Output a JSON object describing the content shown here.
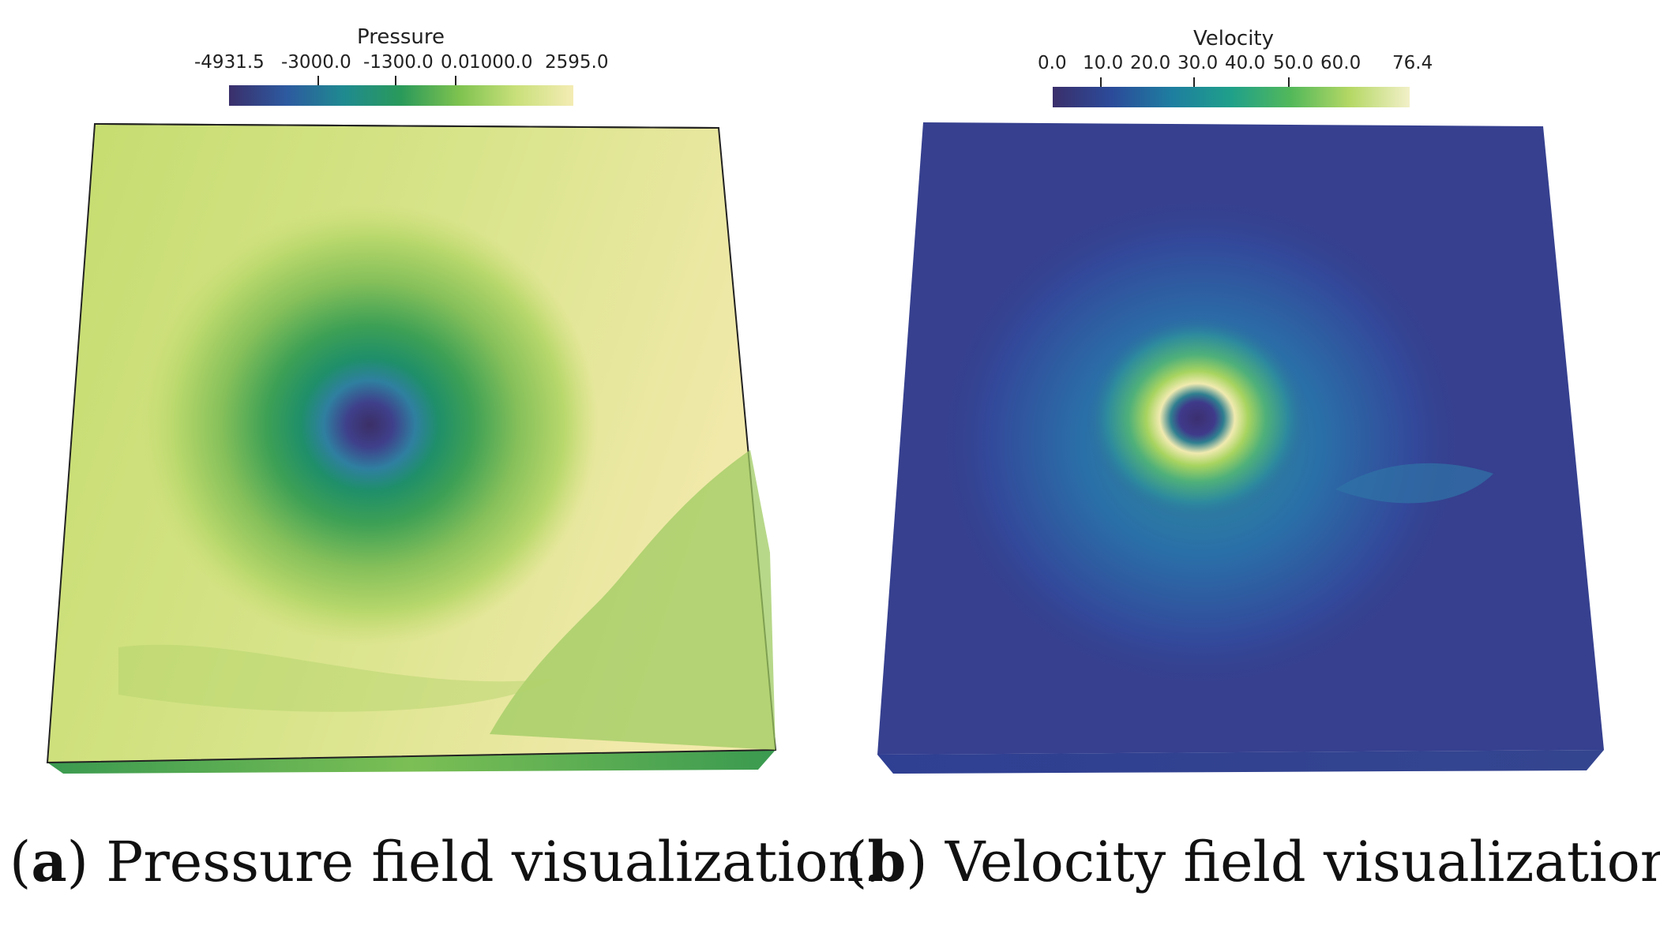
{
  "panel_a": {
    "colorbar": {
      "title": "Pressure",
      "ticks": [
        "-4931.5",
        "-3000.0",
        "-1300.0",
        "0.0",
        "1000.0",
        "2595.0"
      ],
      "gradient": [
        "#3a2f6b",
        "#2d5aa0",
        "#1f8a90",
        "#2a9a5a",
        "#7dc24f",
        "#c9e07a",
        "#f4ecb4"
      ]
    },
    "caption": {
      "letter": "a",
      "text": " Pressure field visualization."
    }
  },
  "panel_b": {
    "colorbar": {
      "title": "Velocity",
      "ticks": [
        "0.0",
        "10.0",
        "20.0",
        "30.0",
        "40.0",
        "50.0",
        "60.0",
        "76.4"
      ],
      "gradient": [
        "#3a2f6b",
        "#2b4b9a",
        "#1e7ea0",
        "#1fa08a",
        "#52b85a",
        "#b5d865",
        "#f2f0c8"
      ]
    },
    "caption": {
      "letter": "b",
      "text": " Velocity field visualization."
    }
  }
}
